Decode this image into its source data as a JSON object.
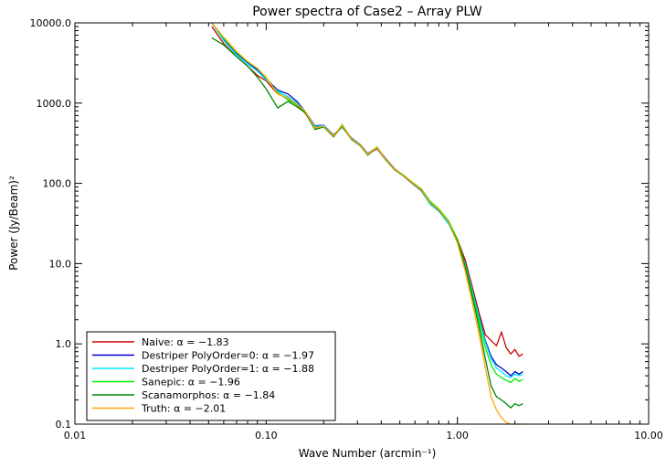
{
  "chart_data": {
    "type": "line",
    "title": "Power spectra of Case2 – Array PLW",
    "xlabel": "Wave Number (arcmin⁻¹)",
    "ylabel": "Power (Jy/Beam)²",
    "x_scale": "log",
    "y_scale": "log",
    "xlim": [
      0.01,
      10.0
    ],
    "ylim": [
      0.1,
      10000.0
    ],
    "x_ticks": [
      "0.01",
      "0.10",
      "1.00",
      "10.00"
    ],
    "y_ticks": [
      "0.1",
      "1.0",
      "10.0",
      "100.0",
      "1000.0",
      "10000.0"
    ],
    "grid": false,
    "legend": "bottom-left",
    "series": [
      {
        "name": "Naive: α = −1.83",
        "color": "#cc0000",
        "x": [
          0.052,
          0.06,
          0.07,
          0.08,
          0.09,
          0.1,
          0.115,
          0.13,
          0.145,
          0.16,
          0.18,
          0.2,
          0.225,
          0.25,
          0.28,
          0.31,
          0.34,
          0.38,
          0.42,
          0.47,
          0.52,
          0.58,
          0.65,
          0.72,
          0.8,
          0.9,
          1.0,
          1.1,
          1.2,
          1.3,
          1.4,
          1.5,
          1.6,
          1.7,
          1.8,
          1.9,
          2.0,
          2.1,
          2.2
        ],
        "y": [
          9000,
          5500,
          3800,
          2900,
          2200,
          1900,
          1300,
          1150,
          950,
          750,
          500,
          520,
          400,
          500,
          360,
          300,
          230,
          270,
          200,
          150,
          125,
          100,
          80,
          55,
          45,
          32,
          20,
          11,
          5,
          2.4,
          1.3,
          1.1,
          0.95,
          1.4,
          0.9,
          0.75,
          0.85,
          0.7,
          0.75
        ]
      },
      {
        "name": "Destriper PolyOrder=0: α = −1.97",
        "color": "#0000cc",
        "x": [
          0.052,
          0.06,
          0.07,
          0.08,
          0.09,
          0.1,
          0.115,
          0.13,
          0.145,
          0.16,
          0.18,
          0.2,
          0.225,
          0.25,
          0.28,
          0.31,
          0.34,
          0.38,
          0.42,
          0.47,
          0.52,
          0.58,
          0.65,
          0.72,
          0.8,
          0.9,
          1.0,
          1.1,
          1.2,
          1.3,
          1.4,
          1.5,
          1.6,
          1.7,
          1.8,
          1.9,
          2.0,
          2.1,
          2.2
        ],
        "y": [
          10500,
          6200,
          4200,
          3200,
          2600,
          2000,
          1450,
          1300,
          1050,
          780,
          520,
          530,
          400,
          510,
          365,
          305,
          235,
          280,
          205,
          152,
          127,
          103,
          82,
          56,
          46,
          32,
          19,
          10,
          4.6,
          2.2,
          1.1,
          0.7,
          0.55,
          0.5,
          0.45,
          0.4,
          0.45,
          0.42,
          0.45
        ]
      },
      {
        "name": "Destriper PolyOrder=1: α = −1.88",
        "color": "#00e5ff",
        "x": [
          0.052,
          0.06,
          0.07,
          0.08,
          0.09,
          0.1,
          0.115,
          0.13,
          0.145,
          0.16,
          0.18,
          0.2,
          0.225,
          0.25,
          0.28,
          0.31,
          0.34,
          0.38,
          0.42,
          0.47,
          0.52,
          0.58,
          0.65,
          0.72,
          0.8,
          0.9,
          1.0,
          1.1,
          1.2,
          1.3,
          1.4,
          1.5,
          1.6,
          1.7,
          1.8,
          1.9,
          2.0,
          2.1,
          2.2
        ],
        "y": [
          11000,
          6000,
          4000,
          3100,
          2500,
          1950,
          1400,
          1200,
          1000,
          770,
          510,
          525,
          395,
          505,
          360,
          302,
          232,
          275,
          202,
          150,
          126,
          101,
          81,
          55,
          45,
          31,
          18.5,
          9.8,
          4.5,
          2.1,
          1.05,
          0.65,
          0.5,
          0.45,
          0.4,
          0.38,
          0.42,
          0.4,
          0.42
        ]
      },
      {
        "name": "Sanepic: α = −1.96",
        "color": "#00ee00",
        "x": [
          0.052,
          0.06,
          0.07,
          0.08,
          0.09,
          0.1,
          0.115,
          0.13,
          0.145,
          0.16,
          0.18,
          0.2,
          0.225,
          0.25,
          0.28,
          0.31,
          0.34,
          0.38,
          0.42,
          0.47,
          0.52,
          0.58,
          0.65,
          0.72,
          0.8,
          0.9,
          1.0,
          1.1,
          1.2,
          1.3,
          1.4,
          1.5,
          1.6,
          1.7,
          1.8,
          1.9,
          2.0,
          2.1,
          2.2
        ],
        "y": [
          11500,
          6400,
          4300,
          3300,
          2700,
          2050,
          1350,
          1100,
          950,
          790,
          480,
          510,
          385,
          540,
          355,
          298,
          228,
          285,
          200,
          150,
          128,
          104,
          85,
          60,
          48,
          34,
          20,
          9.5,
          4.2,
          1.9,
          0.9,
          0.55,
          0.42,
          0.38,
          0.35,
          0.33,
          0.37,
          0.34,
          0.36
        ]
      },
      {
        "name": "Scanamorphos: α = −1.84",
        "color": "#008800",
        "x": [
          0.052,
          0.06,
          0.07,
          0.08,
          0.09,
          0.1,
          0.115,
          0.13,
          0.145,
          0.16,
          0.18,
          0.2,
          0.225,
          0.25,
          0.28,
          0.31,
          0.34,
          0.38,
          0.42,
          0.47,
          0.52,
          0.58,
          0.65,
          0.72,
          0.8,
          0.9,
          1.0,
          1.1,
          1.2,
          1.3,
          1.4,
          1.5,
          1.6,
          1.7,
          1.8,
          1.9,
          2.0,
          2.1,
          2.2
        ],
        "y": [
          6500,
          5300,
          3800,
          2900,
          2100,
          1500,
          870,
          1050,
          900,
          760,
          470,
          505,
          380,
          520,
          350,
          295,
          225,
          280,
          198,
          148,
          125,
          102,
          83,
          58,
          46,
          33,
          19,
          9,
          3.8,
          1.6,
          0.65,
          0.3,
          0.22,
          0.2,
          0.18,
          0.16,
          0.18,
          0.17,
          0.18
        ]
      },
      {
        "name": "Truth: α = −2.01",
        "color": "#ffa500",
        "x": [
          0.052,
          0.06,
          0.07,
          0.08,
          0.09,
          0.1,
          0.115,
          0.13,
          0.145,
          0.16,
          0.18,
          0.2,
          0.225,
          0.25,
          0.28,
          0.31,
          0.34,
          0.38,
          0.42,
          0.47,
          0.52,
          0.58,
          0.65,
          0.72,
          0.8,
          0.9,
          1.0,
          1.1,
          1.2,
          1.3,
          1.4,
          1.5,
          1.6,
          1.7,
          1.8,
          1.9,
          2.0,
          2.1,
          2.2
        ],
        "y": [
          12000,
          6600,
          4400,
          3300,
          2700,
          2100,
          1300,
          1150,
          970,
          790,
          490,
          515,
          390,
          530,
          358,
          300,
          230,
          282,
          201,
          151,
          127,
          103,
          84,
          58,
          47,
          33,
          18,
          8,
          3.2,
          1.3,
          0.5,
          0.22,
          0.15,
          0.12,
          0.105,
          0.1,
          0.095,
          0.1,
          0.1
        ]
      }
    ]
  }
}
